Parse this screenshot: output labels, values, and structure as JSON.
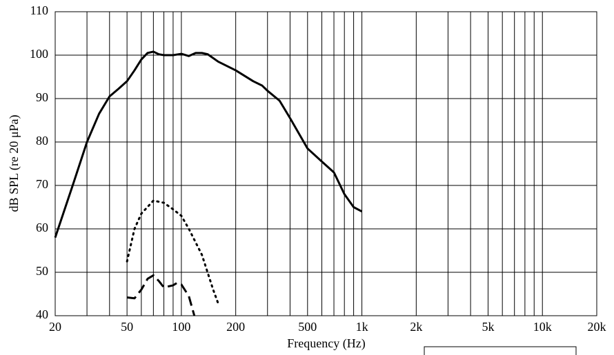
{
  "chart_data": {
    "type": "line",
    "xlabel": "Frequency (Hz)",
    "ylabel": "dB SPL (re 20 μPa)",
    "xscale": "log",
    "xlim": [
      20,
      20000
    ],
    "ylim": [
      40,
      110
    ],
    "xticks": [
      20,
      50,
      100,
      200,
      500,
      {
        "value": 1000,
        "label": "1k"
      },
      {
        "value": 2000,
        "label": "2k"
      },
      {
        "value": 5000,
        "label": "5k"
      },
      {
        "value": 10000,
        "label": "10k"
      },
      {
        "value": 20000,
        "label": "20k"
      }
    ],
    "x_minor_grid": [
      30,
      40,
      60,
      70,
      80,
      90,
      300,
      400,
      600,
      700,
      800,
      900,
      3000,
      4000,
      6000,
      7000,
      8000,
      9000
    ],
    "yticks": [
      40,
      50,
      60,
      70,
      80,
      90,
      100,
      110
    ],
    "grid": true,
    "series": [
      {
        "color": "#000000",
        "style": "solid",
        "x": [
          20,
          25,
          30,
          35,
          40,
          45,
          50,
          55,
          60,
          65,
          70,
          75,
          80,
          90,
          100,
          110,
          120,
          130,
          140,
          160,
          200,
          250,
          280,
          300,
          350,
          400,
          500,
          600,
          700,
          800,
          900,
          1000
        ],
        "values": [
          58,
          70,
          80,
          86.5,
          90.5,
          92.3,
          94,
          96.5,
          99,
          100.5,
          100.8,
          100.2,
          100,
          100,
          100.3,
          99.8,
          100.5,
          100.5,
          100.2,
          98.5,
          96.5,
          94,
          93,
          91.8,
          89.5,
          85.5,
          78.5,
          75.5,
          73,
          68,
          65,
          64
        ]
      },
      {
        "color": "#000000",
        "style": "dotted",
        "x": [
          50,
          55,
          60,
          70,
          80,
          90,
          100,
          110,
          130,
          150,
          160
        ],
        "values": [
          52.5,
          60,
          63.5,
          66.5,
          66,
          64.5,
          63,
          60,
          54,
          46,
          42.8
        ]
      },
      {
        "color": "#000000",
        "style": "dashed",
        "x": [
          50,
          55,
          60,
          65,
          70,
          75,
          80,
          90,
          95,
          100,
          110,
          118
        ],
        "values": [
          44.2,
          44,
          46,
          48.5,
          49.3,
          48,
          46.5,
          47,
          47.6,
          47.2,
          44.5,
          40
        ]
      }
    ]
  }
}
